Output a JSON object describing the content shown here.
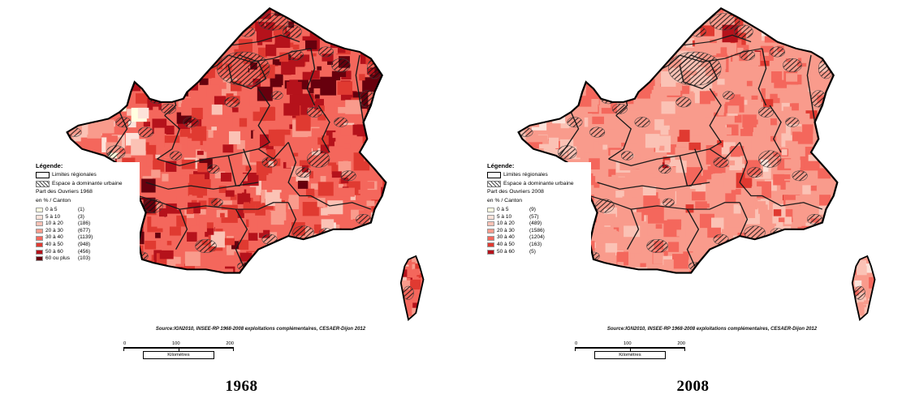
{
  "panels": [
    {
      "year": "1968",
      "legend": {
        "title": "Légende:",
        "limits_label": "Limites régionales",
        "urban_label": "Espace à dominante urbaine",
        "classes_title1": "Part des Ouvriers 1968",
        "classes_title2": "en % / Canton",
        "classes": [
          {
            "label": "0 à 5",
            "count": "(1)",
            "color": "#FFFFE0"
          },
          {
            "label": "5 à 10",
            "count": "(3)",
            "color": "#FDE3DA"
          },
          {
            "label": "10 à 20",
            "count": "(186)",
            "color": "#FBC2B5"
          },
          {
            "label": "20 à 30",
            "count": "(677)",
            "color": "#F99B8C"
          },
          {
            "label": "30 à 40",
            "count": "(1139)",
            "color": "#F4675C"
          },
          {
            "label": "40 à 50",
            "count": "(948)",
            "color": "#E03A31"
          },
          {
            "label": "50 à 60",
            "count": "(456)",
            "color": "#B5121B"
          },
          {
            "label": "60 ou plus",
            "count": "(103)",
            "color": "#67000D"
          }
        ]
      },
      "source": "Source:IGN2010, INSEE-RP 1968-2008 exploitations complémentaires, CESAER-Dijon 2012",
      "scale": {
        "t0": "0",
        "t1": "100",
        "t2": "200",
        "unit": "Kilomètres"
      }
    },
    {
      "year": "2008",
      "legend": {
        "title": "Légende:",
        "limits_label": "Limites régionales",
        "urban_label": "Espace à dominante urbaine",
        "classes_title1": "Part des Ouvriers 2008",
        "classes_title2": "en % / Canton",
        "classes": [
          {
            "label": "0 à 5",
            "count": "(9)",
            "color": "#FFFFE0"
          },
          {
            "label": "5 à 10",
            "count": "(57)",
            "color": "#FDE3DA"
          },
          {
            "label": "10 à 20",
            "count": "(489)",
            "color": "#FBC2B5"
          },
          {
            "label": "20 à 30",
            "count": "(1586)",
            "color": "#F99B8C"
          },
          {
            "label": "30 à 40",
            "count": "(1204)",
            "color": "#F4675C"
          },
          {
            "label": "40 à 50",
            "count": "(163)",
            "color": "#E03A31"
          },
          {
            "label": "50 à 60",
            "count": "(5)",
            "color": "#B5121B"
          }
        ]
      },
      "source": "Source:IGN2010, INSEE-RP 1968-2008 exploitations complémentaires, CESAER-Dijon 2012",
      "scale": {
        "t0": "0",
        "t1": "100",
        "t2": "200",
        "unit": "Kilomètres"
      }
    }
  ]
}
